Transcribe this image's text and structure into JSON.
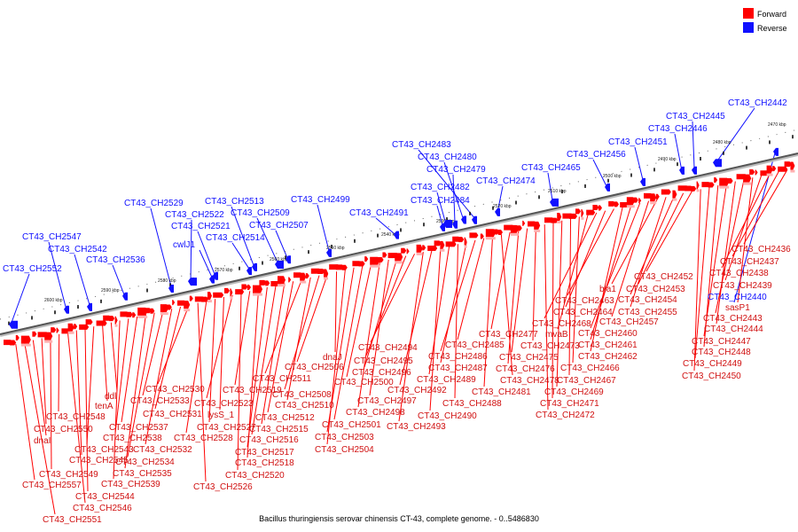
{
  "legend": {
    "forward": {
      "label": "Forward",
      "color": "#ff0000"
    },
    "reverse": {
      "label": "Reverse",
      "color": "#1010ff"
    }
  },
  "caption": "Bacillus thuringiensis serovar chinensis CT-43, complete genome. - 0..5486830",
  "ticks": [
    "2600 kbp",
    "2590 kbp",
    "2580 kbp",
    "2570 kbp",
    "2560 kbp",
    "2550 kbp",
    "2540 kbp",
    "2530 kbp",
    "2520 kbp",
    "2510 kbp",
    "2500 kbp",
    "2490 kbp",
    "2480 kbp",
    "2470 kbp"
  ],
  "reverse_labels": [
    "CT43_CH2552",
    "CT43_CH2547",
    "CT43_CH2542",
    "CT43_CH2536",
    "CT43_CH2529",
    "CT43_CH2522",
    "cwlJ1",
    "CT43_CH2521",
    "CT43_CH2514",
    "CT43_CH2513",
    "CT43_CH2509",
    "CT43_CH2507",
    "CT43_CH2499",
    "CT43_CH2491",
    "CT43_CH2484",
    "CT43_CH2482",
    "CT43_CH2479",
    "CT43_CH2480",
    "CT43_CH2483",
    "CT43_CH2474",
    "CT43_CH2465",
    "CT43_CH2456",
    "CT43_CH2451",
    "CT43_CH2446",
    "CT43_CH2445",
    "CT43_CH2442",
    "CT43_CH2440"
  ],
  "forward_labels": [
    "CT43_CH2436",
    "CT43_CH2437",
    "CT43_CH2438",
    "CT43_CH2439",
    "sasP1",
    "CT43_CH2443",
    "CT43_CH2444",
    "CT43_CH2447",
    "CT43_CH2448",
    "CT43_CH2449",
    "CT43_CH2450",
    "CT43_CH2452",
    "CT43_CH2453",
    "CT43_CH2454",
    "CT43_CH2455",
    "bla1",
    "CT43_CH2457",
    "CT43_CH2460",
    "CT43_CH2461",
    "CT43_CH2462",
    "CT43_CH2463",
    "CT43_CH2464",
    "CT43_CH2468",
    "mvaB",
    "CT43_CH2466",
    "CT43_CH2467",
    "CT43_CH2469",
    "CT43_CH2471",
    "CT43_CH2472",
    "CT43_CH2473",
    "CT43_CH2475",
    "CT43_CH2476",
    "CT43_CH2477",
    "CT43_CH2478",
    "CT43_CH2481",
    "CT43_CH2485",
    "CT43_CH2486",
    "CT43_CH2487",
    "CT43_CH2488",
    "CT43_CH2489",
    "CT43_CH2490",
    "CT43_CH2492",
    "CT43_CH2493",
    "CT43_CH2494",
    "CT43_CH2495",
    "CT43_CH2496",
    "CT43_CH2497",
    "CT43_CH2498",
    "CT43_CH2500",
    "CT43_CH2501",
    "CT43_CH2503",
    "CT43_CH2504",
    "dnaJ",
    "CT43_CH2506",
    "CT43_CH2508",
    "CT43_CH2510",
    "CT43_CH2511",
    "CT43_CH2512",
    "CT43_CH2515",
    "CT43_CH2516",
    "CT43_CH2517",
    "CT43_CH2518",
    "CT43_CH2519",
    "CT43_CH2520",
    "CT43_CH2523",
    "lysS_1",
    "CT43_CH2527",
    "CT43_CH2528",
    "CT43_CH2526",
    "CT43_CH2530",
    "CT43_CH2531",
    "CT43_CH2532",
    "CT43_CH2533",
    "CT43_CH2534",
    "CT43_CH2535",
    "CT43_CH2537",
    "CT43_CH2538",
    "CT43_CH2539",
    "ddl",
    "tenA",
    "CT43_CH2543",
    "CT43_CH2544",
    "CT43_CH2545",
    "CT43_CH2546",
    "CT43_CH2548",
    "CT43_CH2549",
    "CT43_CH2550",
    "dnaI",
    "CT43_CH2551",
    "CT43_CH2557"
  ]
}
